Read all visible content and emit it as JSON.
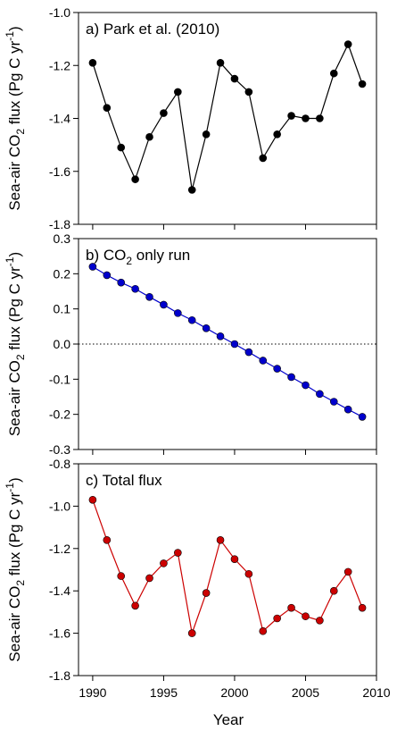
{
  "figure": {
    "ylabel_prefix": "Sea-air CO",
    "ylabel_sub": "2",
    "ylabel_mid": " flux (Pg C yr",
    "ylabel_sup": "-1",
    "ylabel_end": ")",
    "xlabel": "Year"
  },
  "chart_data": [
    {
      "type": "line",
      "panel_title_parts": [
        {
          "t": "a) Park et al. (2010)"
        }
      ],
      "x": [
        1990,
        1991,
        1992,
        1993,
        1994,
        1995,
        1996,
        1997,
        1998,
        1999,
        2000,
        2001,
        2002,
        2003,
        2004,
        2005,
        2006,
        2007,
        2008,
        2009
      ],
      "series": [
        {
          "values": [
            -1.19,
            -1.36,
            -1.51,
            -1.63,
            -1.47,
            -1.38,
            -1.3,
            -1.67,
            -1.46,
            -1.19,
            -1.25,
            -1.3,
            -1.55,
            -1.46,
            -1.39,
            -1.4,
            -1.4,
            -1.23,
            -1.12,
            -1.27
          ],
          "color": "#000000"
        }
      ],
      "xlim": [
        1989,
        2010
      ],
      "ylim": [
        -1.8,
        -1.0
      ],
      "yticks": [
        -1.8,
        -1.6,
        -1.4,
        -1.2,
        -1.0
      ],
      "yticklabels": [
        "-1.8",
        "-1.6",
        "-1.4",
        "-1.2",
        "-1.0"
      ],
      "zero_line": false
    },
    {
      "type": "line",
      "panel_title_parts": [
        {
          "t": "b) CO"
        },
        {
          "t": "2",
          "sub": true
        },
        {
          "t": " only run"
        }
      ],
      "x": [
        1990,
        1991,
        1992,
        1993,
        1994,
        1995,
        1996,
        1997,
        1998,
        1999,
        2000,
        2001,
        2002,
        2003,
        2004,
        2005,
        2006,
        2007,
        2008,
        2009
      ],
      "series": [
        {
          "values": [
            0.22,
            0.196,
            0.175,
            0.157,
            0.134,
            0.112,
            0.088,
            0.068,
            0.045,
            0.022,
            0.0,
            -0.023,
            -0.047,
            -0.07,
            -0.094,
            -0.117,
            -0.142,
            -0.164,
            -0.186,
            -0.207
          ],
          "color": "#0000cc"
        }
      ],
      "xlim": [
        1989,
        2010
      ],
      "ylim": [
        -0.3,
        0.3
      ],
      "yticks": [
        -0.3,
        -0.2,
        -0.1,
        0.0,
        0.1,
        0.2,
        0.3
      ],
      "yticklabels": [
        "-0.3",
        "-0.2",
        "-0.1",
        "0.0",
        "0.1",
        "0.2",
        "0.3"
      ],
      "zero_line": true
    },
    {
      "type": "line",
      "panel_title_parts": [
        {
          "t": "c) Total flux"
        }
      ],
      "x": [
        1990,
        1991,
        1992,
        1993,
        1994,
        1995,
        1996,
        1997,
        1998,
        1999,
        2000,
        2001,
        2002,
        2003,
        2004,
        2005,
        2006,
        2007,
        2008,
        2009
      ],
      "series": [
        {
          "values": [
            -0.97,
            -1.16,
            -1.33,
            -1.47,
            -1.34,
            -1.27,
            -1.22,
            -1.6,
            -1.41,
            -1.16,
            -1.25,
            -1.32,
            -1.59,
            -1.53,
            -1.48,
            -1.52,
            -1.54,
            -1.4,
            -1.31,
            -1.48
          ],
          "color": "#cc0000"
        }
      ],
      "xlim": [
        1989,
        2010
      ],
      "ylim": [
        -1.8,
        -0.8
      ],
      "yticks": [
        -1.8,
        -1.6,
        -1.4,
        -1.2,
        -1.0,
        -0.8
      ],
      "yticklabels": [
        "-1.8",
        "-1.6",
        "-1.4",
        "-1.2",
        "-1.0",
        "-0.8"
      ],
      "zero_line": false,
      "xticks": [
        1990,
        1995,
        2000,
        2005,
        2010
      ],
      "xticklabels": [
        "1990",
        "1995",
        "2000",
        "2005",
        "2010"
      ]
    }
  ]
}
